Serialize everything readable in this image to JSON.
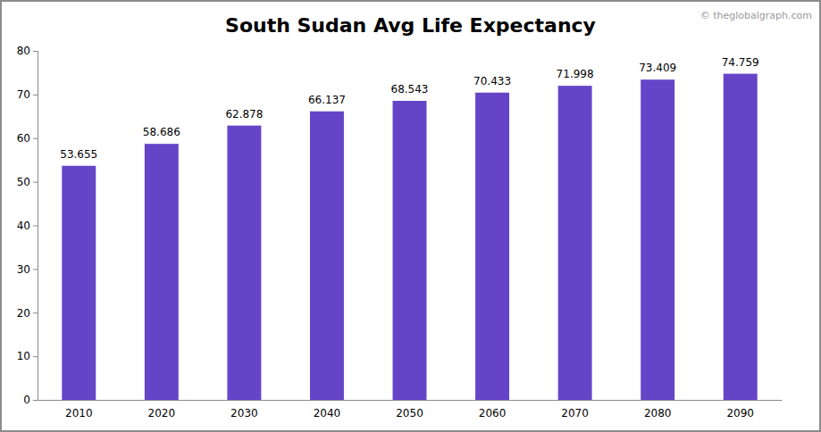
{
  "chart_data": {
    "type": "bar",
    "title": "South Sudan Avg Life Expectancy",
    "annotations": [
      "© theglobalgraph.com"
    ],
    "categories": [
      "2010",
      "2020",
      "2030",
      "2040",
      "2050",
      "2060",
      "2070",
      "2080",
      "2090"
    ],
    "values": [
      53.655,
      58.686,
      62.878,
      66.137,
      68.543,
      70.433,
      71.998,
      73.409,
      74.759
    ],
    "color": "#6644c8",
    "ylim": [
      0,
      80
    ],
    "yticks": [
      0,
      10,
      20,
      30,
      40,
      50,
      60,
      70,
      80
    ],
    "grid": false,
    "data_labels": true
  }
}
